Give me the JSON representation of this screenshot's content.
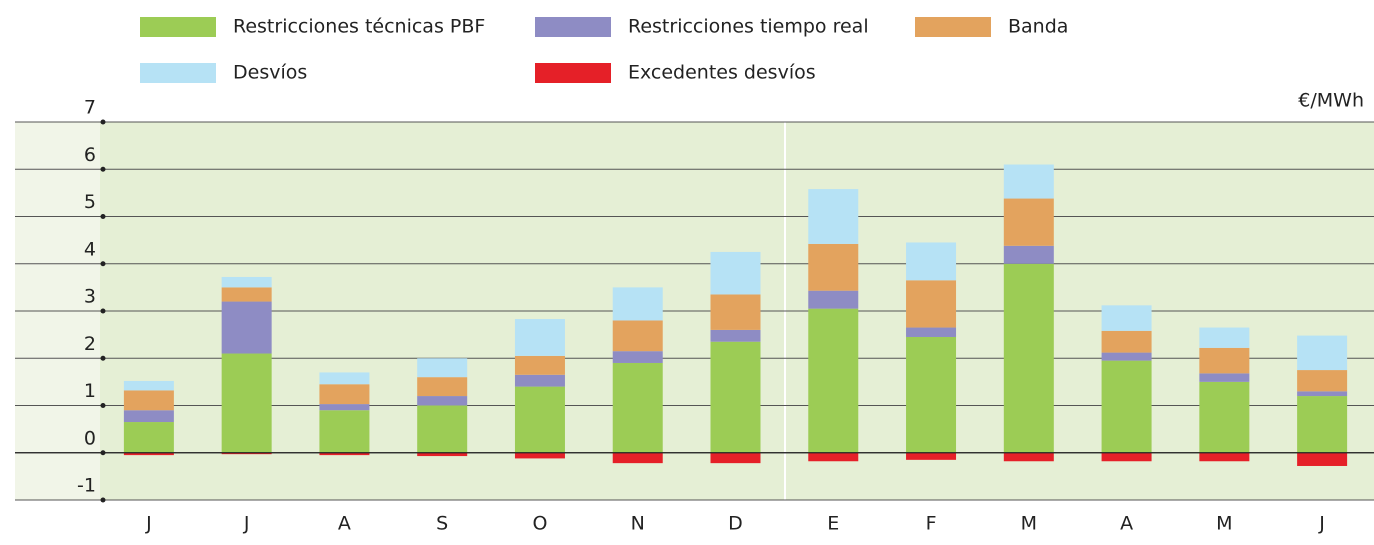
{
  "chart_data": {
    "type": "bar",
    "stacked": true,
    "unit_label": "€/MWh",
    "categories": [
      "J",
      "J",
      "A",
      "S",
      "O",
      "N",
      "D",
      "E",
      "F",
      "M",
      "A",
      "M",
      "J"
    ],
    "series": [
      {
        "name": "Restricciones técnicas PBF",
        "color": "#9ccc55",
        "values": [
          0.65,
          2.1,
          0.9,
          1.0,
          1.4,
          1.9,
          2.35,
          3.05,
          2.45,
          4.0,
          1.95,
          1.5,
          1.2
        ]
      },
      {
        "name": "Restricciones tiempo real",
        "color": "#8e8cc4",
        "values": [
          0.25,
          1.1,
          0.13,
          0.2,
          0.25,
          0.25,
          0.25,
          0.38,
          0.2,
          0.38,
          0.17,
          0.18,
          0.1
        ]
      },
      {
        "name": "Banda",
        "color": "#e3a35e",
        "values": [
          0.42,
          0.3,
          0.42,
          0.4,
          0.4,
          0.65,
          0.75,
          0.99,
          1.0,
          1.0,
          0.46,
          0.54,
          0.45
        ]
      },
      {
        "name": "Desvíos",
        "color": "#b6e2f5",
        "values": [
          0.2,
          0.22,
          0.25,
          0.4,
          0.78,
          0.7,
          0.9,
          1.16,
          0.8,
          0.72,
          0.54,
          0.43,
          0.73
        ]
      },
      {
        "name": "Excedentes desvíos",
        "color": "#e52028",
        "values": [
          -0.05,
          -0.03,
          -0.05,
          -0.07,
          -0.12,
          -0.22,
          -0.22,
          -0.18,
          -0.15,
          -0.18,
          -0.18,
          -0.18,
          -0.28
        ]
      }
    ],
    "ylim": [
      -1,
      7
    ],
    "yticks": [
      -1,
      0,
      1,
      2,
      3,
      4,
      5,
      6,
      7
    ],
    "grid": true
  }
}
